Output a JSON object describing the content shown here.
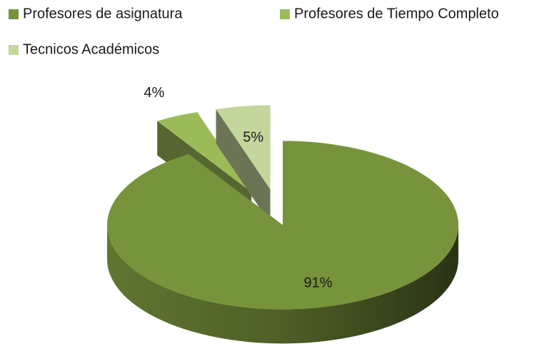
{
  "chart_data": {
    "type": "pie3d",
    "series": [
      {
        "name": "Profesores de asignatura",
        "color": "#77933c",
        "values": [
          91
        ],
        "value_labels": [
          "91%"
        ]
      },
      {
        "name": "Profesores de Tiempo Completo",
        "color": "#9bbb59",
        "values": [
          4
        ],
        "value_labels": [
          "4%"
        ]
      },
      {
        "name": "Tecnicos Académicos",
        "color": "#c3d69b",
        "values": [
          5
        ],
        "value_labels": [
          "5%"
        ]
      }
    ],
    "legend": "top"
  }
}
